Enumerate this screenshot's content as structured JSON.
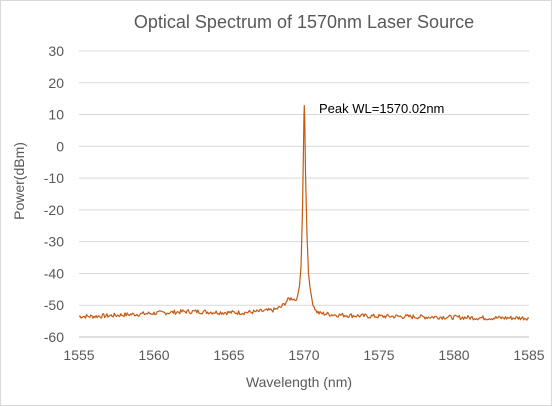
{
  "chart_data": {
    "type": "line",
    "title": "Optical Spectrum of 1570nm Laser Source",
    "xlabel": "Wavelength (nm)",
    "ylabel": "Power(dBm)",
    "xlim": [
      1555,
      1585
    ],
    "ylim": [
      -60,
      30
    ],
    "x_ticks": [
      "1555",
      "1560",
      "1565",
      "1570",
      "1575",
      "1580",
      "1585"
    ],
    "y_ticks": [
      "30",
      "20",
      "10",
      "0",
      "-10",
      "-20",
      "-30",
      "-40",
      "-50",
      "-60"
    ],
    "grid": "horizontal",
    "legend": "none",
    "annotation": "Peak WL=1570.02nm",
    "series": [
      {
        "color": "#C55A11",
        "x": [
          1555.0,
          1556.0,
          1557.0,
          1558.0,
          1559.0,
          1560.0,
          1561.0,
          1562.0,
          1563.0,
          1564.0,
          1565.0,
          1566.0,
          1567.0,
          1568.0,
          1568.5,
          1568.8,
          1569.0,
          1569.2,
          1569.4,
          1569.55,
          1569.7,
          1569.8,
          1569.9,
          1569.96,
          1570.0,
          1570.02,
          1570.05,
          1570.1,
          1570.2,
          1570.3,
          1570.45,
          1570.6,
          1570.8,
          1571.0,
          1572.0,
          1573.0,
          1574.0,
          1575.0,
          1576.0,
          1577.0,
          1578.0,
          1579.0,
          1580.0,
          1581.0,
          1582.0,
          1583.0,
          1584.0,
          1585.0
        ],
        "y": [
          -53.5,
          -53.5,
          -53.3,
          -53.0,
          -52.8,
          -52.5,
          -52.3,
          -52.0,
          -52.0,
          -52.2,
          -52.3,
          -52.3,
          -52.0,
          -51.5,
          -50.5,
          -49.0,
          -48.0,
          -47.8,
          -48.2,
          -47.5,
          -44.0,
          -38.0,
          -20.0,
          -2.0,
          10.0,
          12.8,
          8.0,
          -8.0,
          -28.0,
          -40.0,
          -46.5,
          -49.5,
          -51.8,
          -52.5,
          -53.0,
          -53.2,
          -53.4,
          -53.5,
          -53.5,
          -53.6,
          -53.7,
          -53.7,
          -53.8,
          -53.9,
          -54.0,
          -54.0,
          -54.0,
          -54.0
        ]
      }
    ]
  }
}
